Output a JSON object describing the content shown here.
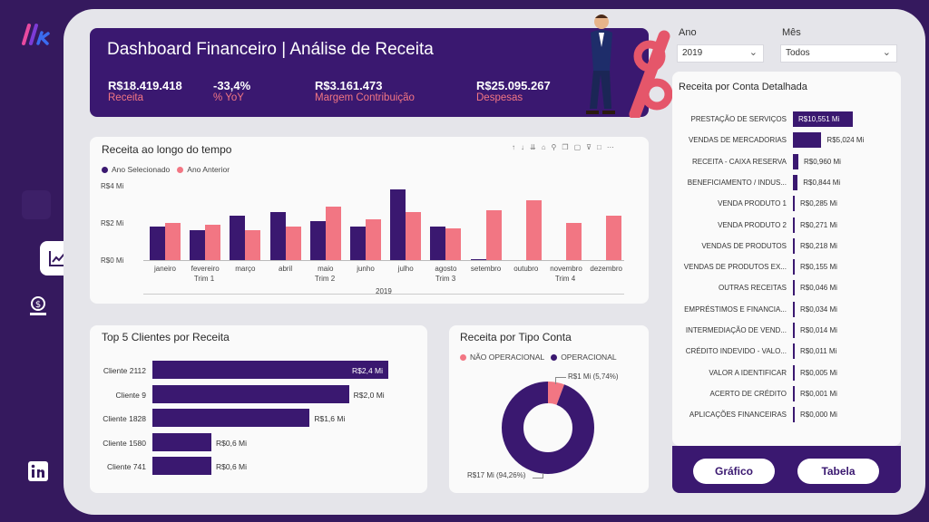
{
  "header": {
    "title": "Dashboard Financeiro | Análise de Receita",
    "kpis": [
      {
        "value": "R$18.419.418",
        "label": "Receita"
      },
      {
        "value": "-33,4%",
        "label": "% YoY"
      },
      {
        "value": "R$3.161.473",
        "label": "Margem Contribuição"
      },
      {
        "value": "R$25.095.267",
        "label": "Despesas"
      }
    ]
  },
  "filters": {
    "ano": {
      "label": "Ano",
      "value": "2019"
    },
    "mes": {
      "label": "Mês",
      "value": "Todos"
    }
  },
  "revenue_time": {
    "title": "Receita ao longo do tempo",
    "legend": [
      "Ano Selecionado",
      "Ano Anterior"
    ],
    "y_ticks": [
      "R$4 Mi",
      "R$2 Mi",
      "R$0 Mi"
    ],
    "quarters": [
      "Trim 1",
      "Trim 2",
      "Trim 3",
      "Trim 4"
    ],
    "year": "2019"
  },
  "top_clients": {
    "title": "Top 5 Clientes por Receita",
    "rows": [
      {
        "name": "Cliente 2112",
        "label": "R$2,4 Mi"
      },
      {
        "name": "Cliente 9",
        "label": "R$2,0 Mi"
      },
      {
        "name": "Cliente 1828",
        "label": "R$1,6 Mi"
      },
      {
        "name": "Cliente 1580",
        "label": "R$0,6 Mi"
      },
      {
        "name": "Cliente 741",
        "label": "R$0,6 Mi"
      }
    ]
  },
  "account_type": {
    "title": "Receita por Tipo Conta",
    "legend": [
      "NÃO OPERACIONAL",
      "OPERACIONAL"
    ],
    "slice_labels": [
      "R$1 Mi (5,74%)",
      "R$17 Mi (94,26%)"
    ]
  },
  "accounts": {
    "title": "Receita por Conta Detalhada",
    "rows": [
      {
        "name": "PRESTAÇÃO DE SERVIÇOS",
        "label": "R$10,551 Mi"
      },
      {
        "name": "VENDAS DE MERCADORIAS",
        "label": "R$5,024 Mi"
      },
      {
        "name": "RECEITA - CAIXA RESERVA",
        "label": "R$0,960 Mi"
      },
      {
        "name": "BENEFICIAMENTO / INDUS...",
        "label": "R$0,844 Mi"
      },
      {
        "name": "VENDA PRODUTO 1",
        "label": "R$0,285 Mi"
      },
      {
        "name": "VENDA PRODUTO 2",
        "label": "R$0,271 Mi"
      },
      {
        "name": "VENDAS DE PRODUTOS",
        "label": "R$0,218 Mi"
      },
      {
        "name": "VENDAS DE PRODUTOS EX...",
        "label": "R$0,155 Mi"
      },
      {
        "name": "OUTRAS RECEITAS",
        "label": "R$0,046 Mi"
      },
      {
        "name": "EMPRÉSTIMOS E FINANCIA...",
        "label": "R$0,034 Mi"
      },
      {
        "name": "INTERMEDIAÇÃO DE VEND...",
        "label": "R$0,014 Mi"
      },
      {
        "name": "CRÉDITO INDEVIDO - VALO...",
        "label": "R$0,011 Mi"
      },
      {
        "name": "VALOR A IDENTIFICAR",
        "label": "R$0,005 Mi"
      },
      {
        "name": "ACERTO DE CRÉDITO",
        "label": "R$0,001 Mi"
      },
      {
        "name": "APLICAÇÕES FINANCEIRAS",
        "label": "R$0,000 Mi"
      }
    ]
  },
  "buttons": {
    "grafico": "Gráfico",
    "tabela": "Tabela"
  },
  "colors": {
    "primary": "#3a1870",
    "accent": "#f27683",
    "background": "#35195e"
  },
  "chart_data": [
    {
      "type": "bar",
      "title": "Receita ao longo do tempo",
      "categories": [
        "janeiro",
        "fevereiro",
        "março",
        "abril",
        "maio",
        "junho",
        "julho",
        "agosto",
        "setembro",
        "outubro",
        "novembro",
        "dezembro"
      ],
      "series": [
        {
          "name": "Ano Selecionado",
          "values": [
            1.8,
            1.6,
            2.4,
            2.6,
            2.1,
            1.8,
            3.8,
            1.8,
            0.05,
            0,
            0,
            0
          ]
        },
        {
          "name": "Ano Anterior",
          "values": [
            2.0,
            1.9,
            1.6,
            1.8,
            2.9,
            2.2,
            2.6,
            1.7,
            2.7,
            3.2,
            2.0,
            2.4
          ]
        }
      ],
      "ylim": [
        0,
        4
      ]
    },
    {
      "type": "bar",
      "title": "Top 5 Clientes por Receita",
      "categories": [
        "Cliente 2112",
        "Cliente 9",
        "Cliente 1828",
        "Cliente 1580",
        "Cliente 741"
      ],
      "values": [
        2.4,
        2.0,
        1.6,
        0.6,
        0.6
      ]
    },
    {
      "type": "pie",
      "title": "Receita por Tipo Conta",
      "categories": [
        "NÃO OPERACIONAL",
        "OPERACIONAL"
      ],
      "values": [
        5.74,
        94.26
      ]
    },
    {
      "type": "bar",
      "title": "Receita por Conta Detalhada",
      "values": [
        10.551,
        5.024,
        0.96,
        0.844,
        0.285,
        0.271,
        0.218,
        0.155,
        0.046,
        0.034,
        0.014,
        0.011,
        0.005,
        0.001,
        0.0
      ]
    }
  ]
}
